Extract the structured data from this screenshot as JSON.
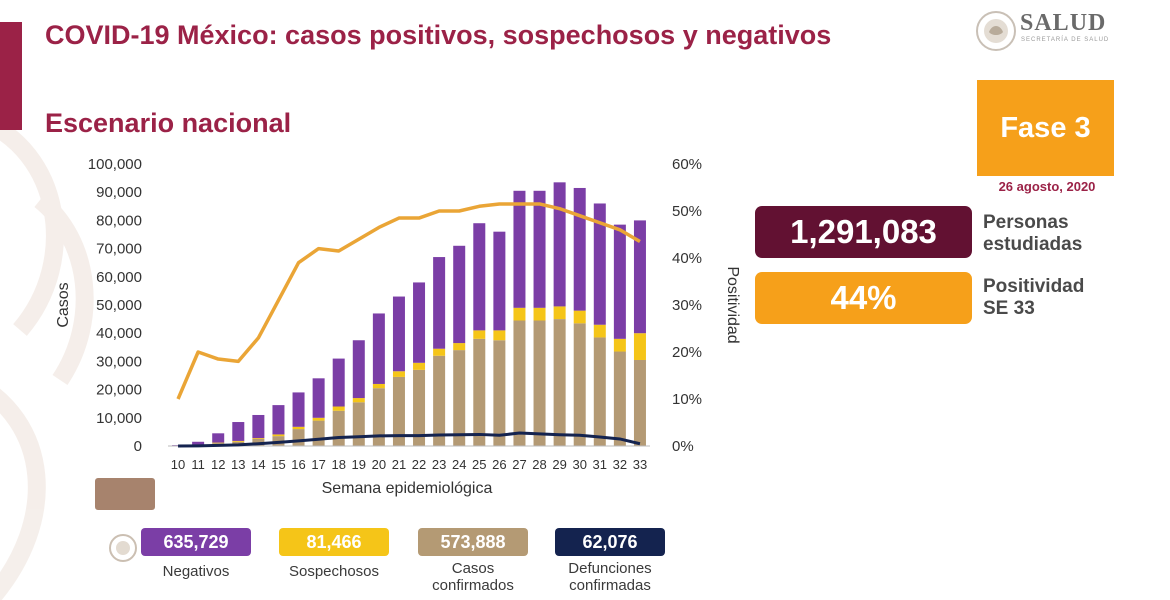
{
  "header": {
    "title": "COVID-19 México: casos positivos, sospechosos y negativos",
    "subtitle": "Escenario nacional",
    "logo_text": "SALUD",
    "logo_subtext": "SECRETARÍA DE SALUD"
  },
  "phase": {
    "label": "Fase 3",
    "date": "26 agosto, 2020"
  },
  "stats": {
    "personas_value": "1,291,083",
    "personas_label": "Personas estudiadas",
    "positividad_value": "44%",
    "positividad_label": "Positividad SE 33"
  },
  "legend": {
    "negativos_value": "635,729",
    "negativos_label": "Negativos",
    "sospechosos_value": "81,466",
    "sospechosos_label": "Sospechosos",
    "confirmados_value": "573,888",
    "confirmados_label": "Casos confirmados",
    "defunciones_value": "62,076",
    "defunciones_label": "Defunciones confirmadas"
  },
  "colors": {
    "brand": "#9b2247",
    "negativos": "#7b3ea6",
    "sospechosos": "#f5c518",
    "confirmados": "#b49a74",
    "defunciones": "#14234f",
    "positividad": "#eaa536"
  },
  "chart_data": {
    "type": "bar",
    "stacked": true,
    "xlabel": "Semana epidemiológica",
    "ylabel": "Casos",
    "y2label": "Positividad",
    "categories": [
      "10",
      "11",
      "12",
      "13",
      "14",
      "15",
      "16",
      "17",
      "18",
      "19",
      "20",
      "21",
      "22",
      "23",
      "24",
      "25",
      "26",
      "27",
      "28",
      "29",
      "30",
      "31",
      "32",
      "33"
    ],
    "ylim": [
      0,
      100000
    ],
    "yticks": [
      "0",
      "10,000",
      "20,000",
      "30,000",
      "40,000",
      "50,000",
      "60,000",
      "70,000",
      "80,000",
      "90,000",
      "100,000"
    ],
    "y2lim": [
      0,
      60
    ],
    "y2ticks": [
      "0%",
      "10%",
      "20%",
      "30%",
      "40%",
      "50%",
      "60%"
    ],
    "series": [
      {
        "name": "Casos confirmados",
        "kind": "bar",
        "values": [
          0,
          300,
          1000,
          1500,
          2500,
          3500,
          6000,
          9000,
          12500,
          15500,
          20500,
          24500,
          27000,
          32000,
          34000,
          38000,
          37500,
          44500,
          44500,
          45000,
          43500,
          38500,
          33500,
          30500
        ]
      },
      {
        "name": "Sospechosos",
        "kind": "bar",
        "values": [
          0,
          100,
          200,
          300,
          300,
          600,
          800,
          1000,
          1500,
          1500,
          1500,
          2000,
          2500,
          2500,
          2500,
          3000,
          3500,
          4500,
          4500,
          4500,
          4500,
          4500,
          4500,
          9500
        ]
      },
      {
        "name": "Negativos",
        "kind": "bar",
        "values": [
          300,
          1100,
          3300,
          6700,
          8200,
          10400,
          12200,
          14000,
          17000,
          20500,
          25000,
          26500,
          28500,
          32500,
          34500,
          38000,
          35000,
          41500,
          41500,
          44000,
          43500,
          43000,
          40500,
          40000
        ]
      },
      {
        "name": "Defunciones confirmadas",
        "kind": "line",
        "values": [
          0,
          50,
          200,
          400,
          800,
          1300,
          1800,
          2400,
          3000,
          3300,
          3600,
          3700,
          3700,
          3900,
          4000,
          4100,
          3800,
          4600,
          4300,
          4000,
          3800,
          3200,
          2500,
          800
        ]
      },
      {
        "name": "Positividad",
        "kind": "line",
        "axis": "right",
        "values": [
          10,
          20,
          18.5,
          18,
          23,
          31,
          39,
          42,
          41.5,
          44,
          46.5,
          48.5,
          48.5,
          50,
          50,
          51,
          51.5,
          51.5,
          51.5,
          50.5,
          49,
          47.5,
          46,
          43.5
        ]
      }
    ]
  }
}
